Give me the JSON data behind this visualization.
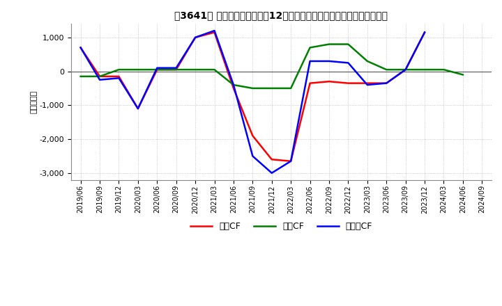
{
  "title": "【3641】 キャッシュフローの12か月移動合計の対前年同期増減額の推移",
  "ylabel": "（百万円）",
  "ylim": [
    -3200,
    1400
  ],
  "yticks": [
    1000,
    0,
    -1000,
    -2000,
    -3000
  ],
  "x_labels": [
    "2019/06",
    "2019/09",
    "2019/12",
    "2020/03",
    "2020/06",
    "2020/09",
    "2020/12",
    "2021/03",
    "2021/06",
    "2021/09",
    "2021/12",
    "2022/03",
    "2022/06",
    "2022/09",
    "2022/12",
    "2023/03",
    "2023/06",
    "2023/09",
    "2023/12",
    "2024/03",
    "2024/06",
    "2024/09"
  ],
  "operating_cf": [
    700,
    -150,
    -150,
    -1100,
    50,
    50,
    1000,
    1150,
    -500,
    -1900,
    -2600,
    -2650,
    -350,
    -300,
    -350,
    -350,
    -350,
    50,
    1150,
    null,
    null,
    null
  ],
  "investing_cf": [
    -150,
    -150,
    50,
    50,
    50,
    50,
    50,
    50,
    -400,
    -500,
    -500,
    -500,
    700,
    800,
    800,
    300,
    50,
    50,
    50,
    50,
    -100,
    null
  ],
  "free_cf": [
    700,
    -250,
    -200,
    -1100,
    100,
    100,
    1000,
    1200,
    -400,
    -2500,
    -3000,
    -2650,
    300,
    300,
    250,
    -400,
    -350,
    50,
    1150,
    null,
    null,
    null
  ],
  "operating_color": "#ff0000",
  "investing_color": "#008000",
  "free_color": "#0000ff",
  "legend_labels": [
    "営業CF",
    "投資CF",
    "フリーCF"
  ],
  "background_color": "#ffffff",
  "grid_color": "#aaaaaa"
}
